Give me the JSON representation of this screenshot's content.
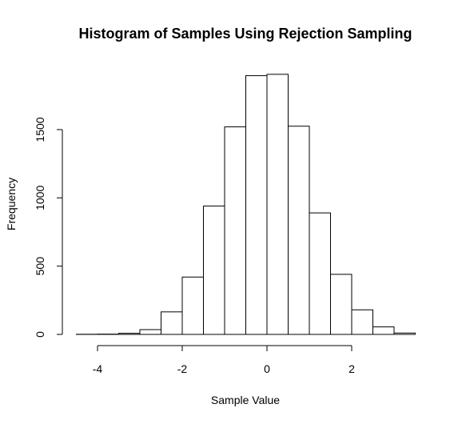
{
  "chart_data": {
    "type": "bar",
    "title": "Histogram of Samples Using Rejection Sampling",
    "xlabel": "Sample Value",
    "ylabel": "Frequency",
    "bin_width": 0.5,
    "bins": [
      {
        "start": -4.5,
        "end": -4.0,
        "count": 1
      },
      {
        "start": -4.0,
        "end": -3.5,
        "count": 2
      },
      {
        "start": -3.5,
        "end": -3.0,
        "count": 8
      },
      {
        "start": -3.0,
        "end": -2.5,
        "count": 35
      },
      {
        "start": -2.5,
        "end": -2.0,
        "count": 165
      },
      {
        "start": -2.0,
        "end": -1.5,
        "count": 420
      },
      {
        "start": -1.5,
        "end": -1.0,
        "count": 940
      },
      {
        "start": -1.0,
        "end": -0.5,
        "count": 1520
      },
      {
        "start": -0.5,
        "end": 0.0,
        "count": 1895
      },
      {
        "start": 0.0,
        "end": 0.5,
        "count": 1905
      },
      {
        "start": 0.5,
        "end": 1.0,
        "count": 1525
      },
      {
        "start": 1.0,
        "end": 1.5,
        "count": 890
      },
      {
        "start": 1.5,
        "end": 2.0,
        "count": 440
      },
      {
        "start": 2.0,
        "end": 2.5,
        "count": 180
      },
      {
        "start": 2.5,
        "end": 3.0,
        "count": 55
      },
      {
        "start": 3.0,
        "end": 3.5,
        "count": 10
      }
    ],
    "xlim": [
      -4.5,
      3.5
    ],
    "ylim": [
      0,
      1950
    ],
    "x_ticks": [
      -4,
      -2,
      0,
      2
    ],
    "x_tick_labels": [
      "-4",
      "-2",
      "0",
      "2"
    ],
    "y_ticks": [
      0,
      500,
      1000,
      1500
    ],
    "y_tick_labels": [
      "0",
      "500",
      "1000",
      "1500"
    ],
    "grid": false,
    "legend": "none",
    "bar_fill": "#ffffff",
    "bar_stroke": "#000000"
  }
}
